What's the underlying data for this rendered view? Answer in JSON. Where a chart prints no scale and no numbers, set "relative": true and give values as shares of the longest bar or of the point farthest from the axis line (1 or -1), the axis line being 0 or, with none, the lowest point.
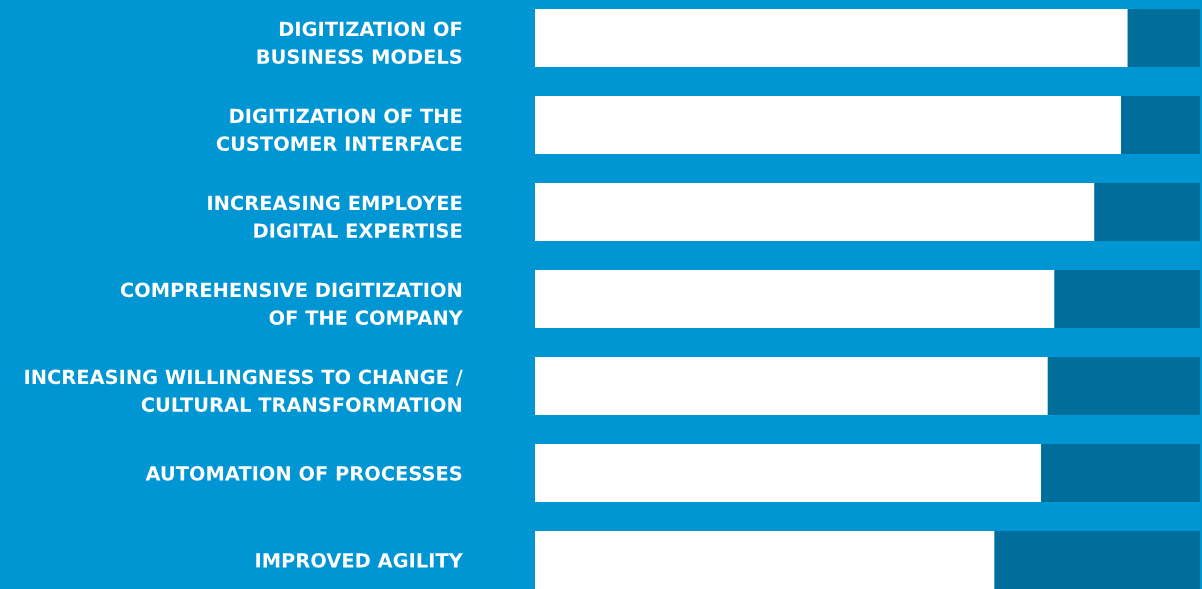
{
  "chart_data": {
    "type": "bar",
    "orientation": "horizontal",
    "stacked": true,
    "relative": true,
    "tick_labels": "y",
    "categories": [
      "DIGITIZATION OF\nBUSINESS MODELS",
      "DIGITIZATION OF THE\nCUSTOMER INTERFACE",
      "INCREASING EMPLOYEE\nDIGITAL EXPERTISE",
      "COMPREHENSIVE DIGITIZATION\nOF THE COMPANY",
      "INCREASING WILLINGNESS TO CHANGE /\nCULTURAL TRANSFORMATION",
      "AUTOMATION OF PROCESSES",
      "IMPROVED AGILITY"
    ],
    "series": [
      {
        "color": "#ffffff",
        "values": [
          0.89,
          0.88,
          0.84,
          0.78,
          0.77,
          0.76,
          0.69
        ]
      },
      {
        "color": "#006e9a",
        "values": [
          0.11,
          0.12,
          0.16,
          0.22,
          0.23,
          0.24,
          0.31
        ]
      }
    ]
  }
}
